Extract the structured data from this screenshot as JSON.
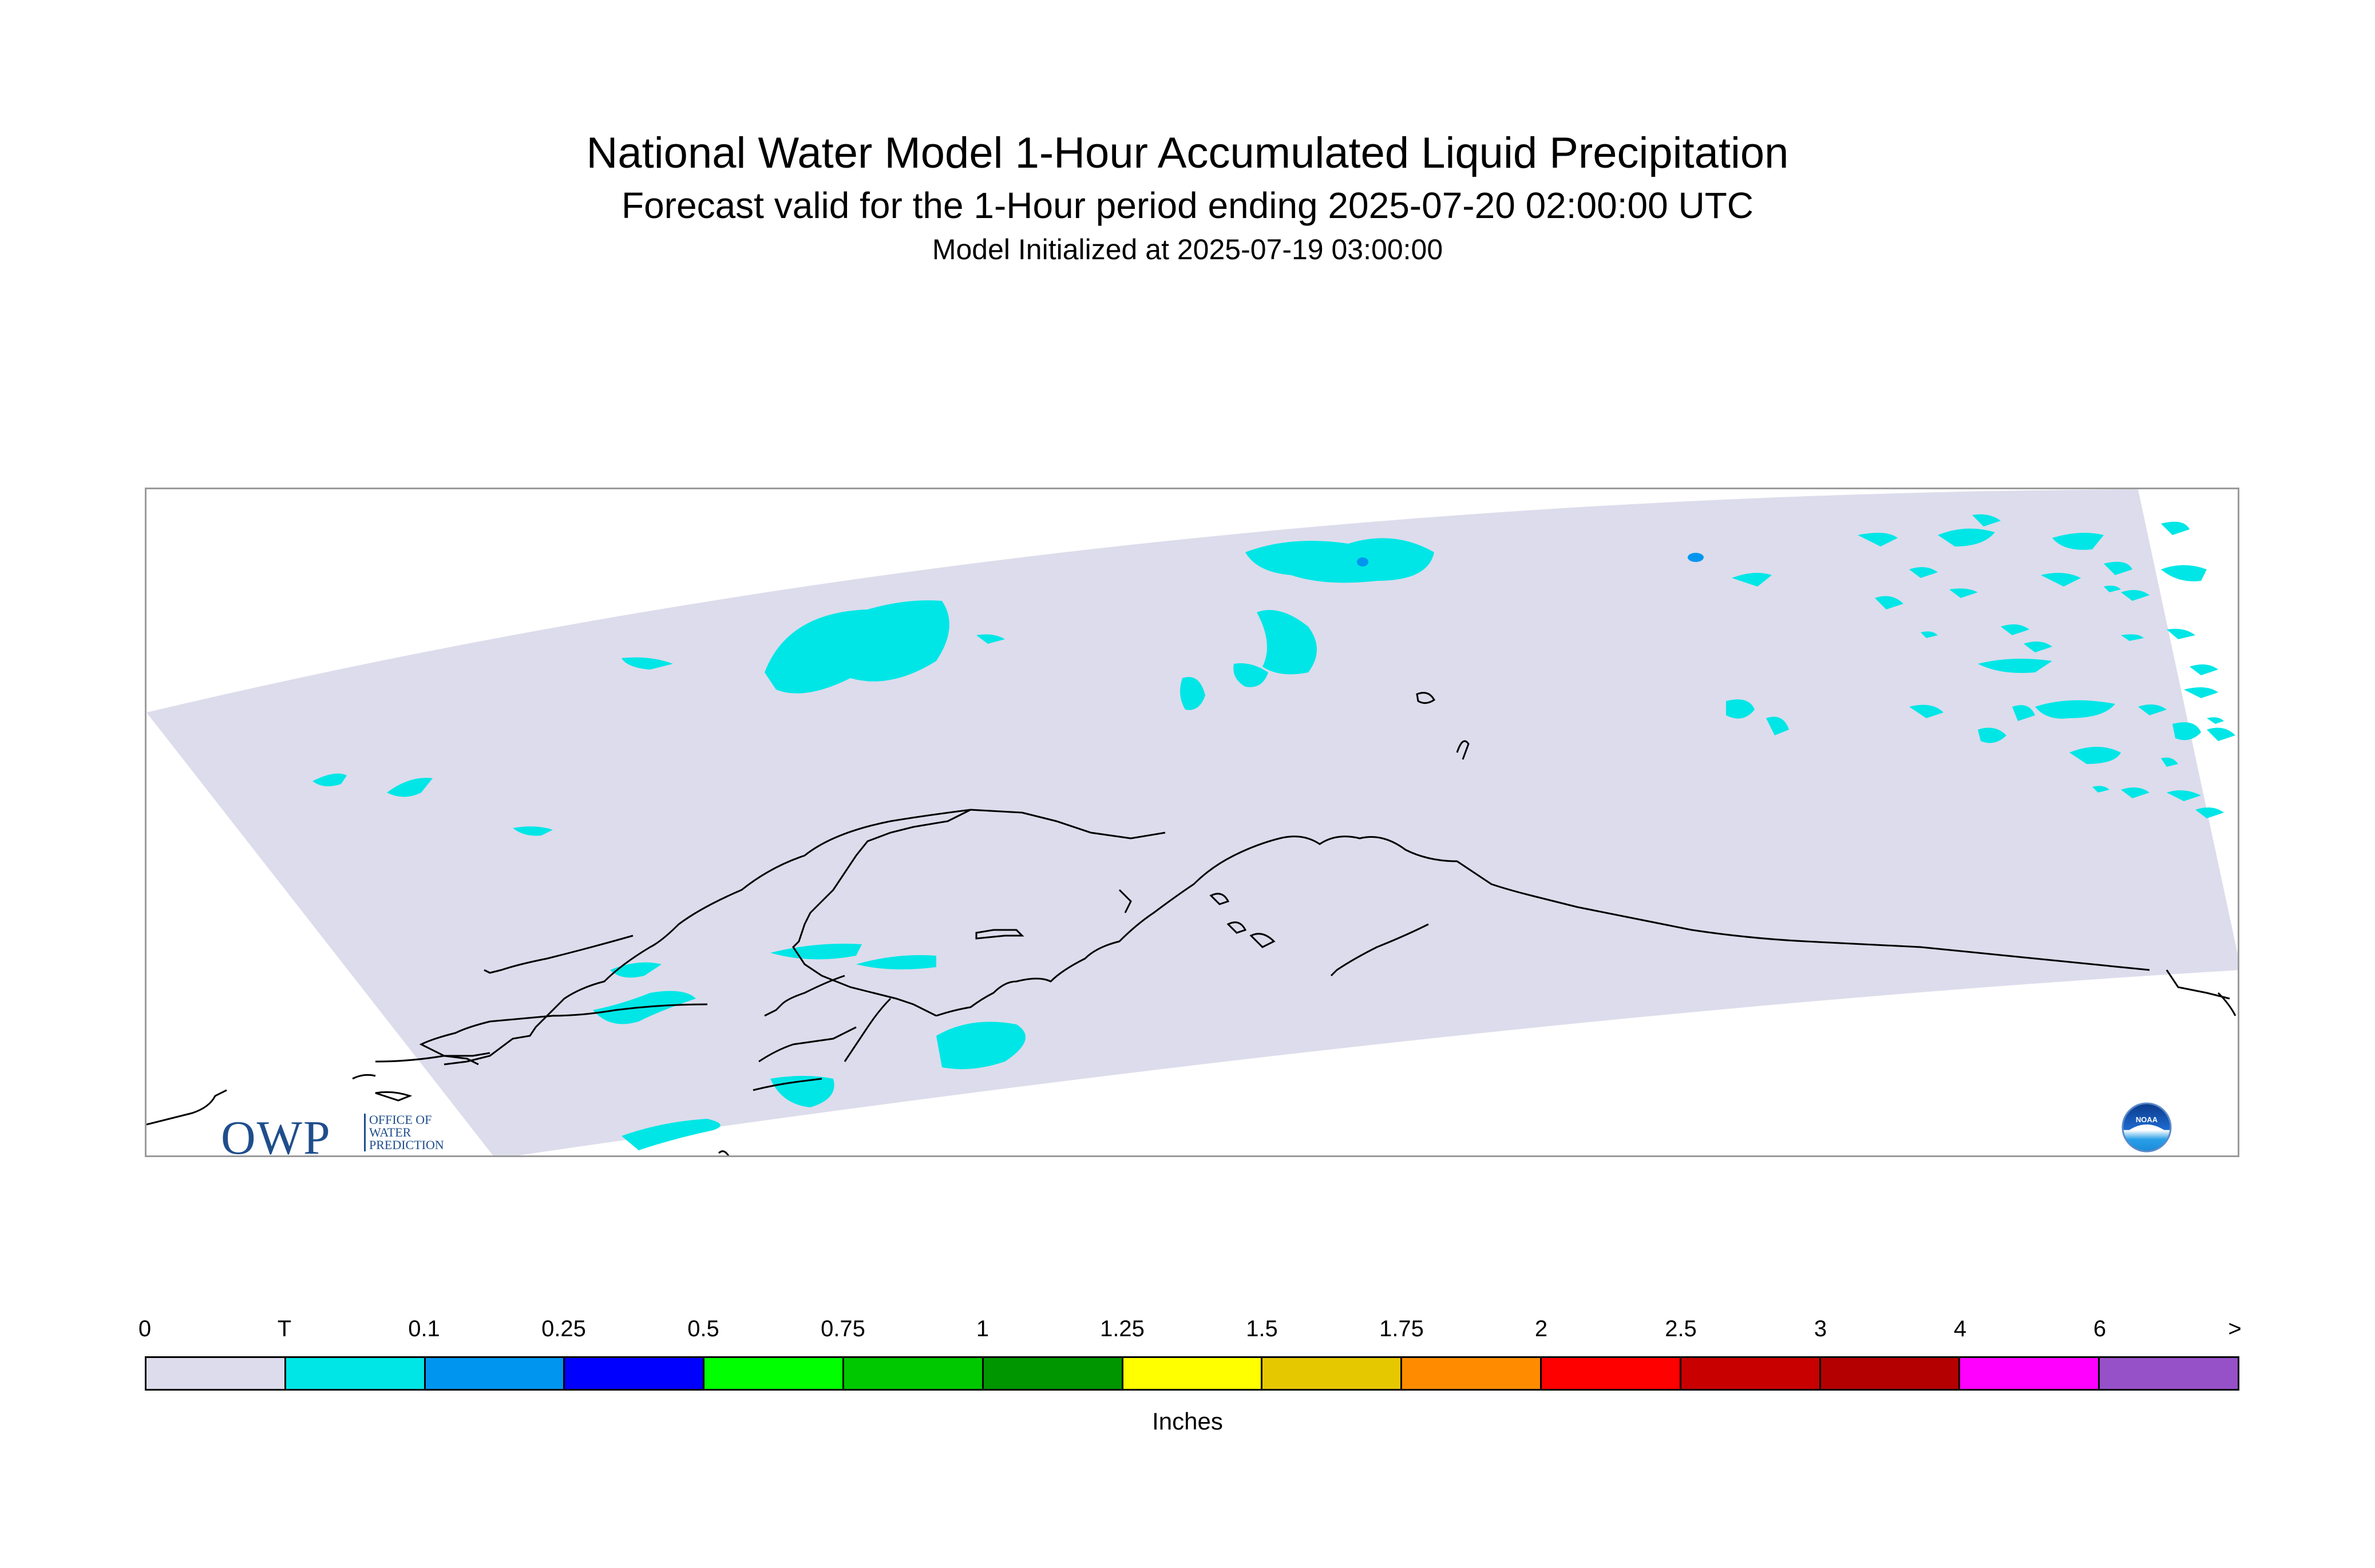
{
  "header": {
    "title": "National Water Model 1-Hour Accumulated Liquid Precipitation",
    "subtitle": "Forecast valid for the 1-Hour period ending 2025-07-20 02:00:00 UTC",
    "init_line": "Model Initialized at 2025-07-19 03:00:00"
  },
  "map": {
    "domain_fill_color": "#dcdcec",
    "trace_color": "#00e6e6",
    "light_blue_color": "#0096f0",
    "coastline_color": "#000000",
    "logos": {
      "owp_big": "OWP",
      "owp_small": [
        "OFFICE OF",
        "WATER",
        "PREDICTION"
      ],
      "noaa": "NOAA"
    }
  },
  "legend": {
    "labels": [
      "0",
      "T",
      "0.1",
      "0.25",
      "0.5",
      "0.75",
      "1",
      "1.25",
      "1.5",
      "1.75",
      "2",
      "2.5",
      "3",
      "4",
      "6",
      ">"
    ],
    "colors": [
      "#dcdcec",
      "#00e6e6",
      "#0096f0",
      "#0000ff",
      "#00ff00",
      "#00c800",
      "#009600",
      "#ffff00",
      "#e6c800",
      "#ff8c00",
      "#ff0000",
      "#c80000",
      "#b40000",
      "#ff00ff",
      "#9650c8"
    ],
    "units": "Inches"
  }
}
